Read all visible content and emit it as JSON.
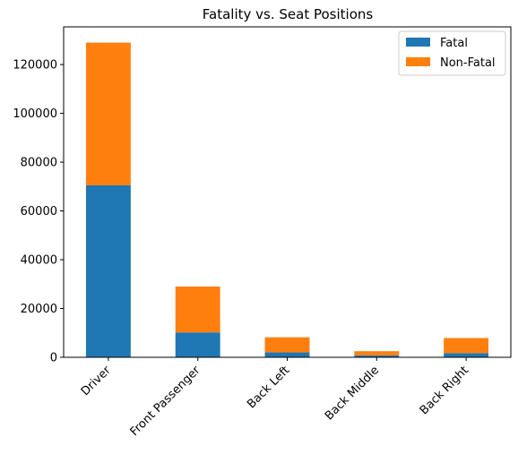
{
  "chart_data": {
    "type": "bar",
    "stacked": true,
    "title": "Fatality vs. Seat Positions",
    "xlabel": "",
    "ylabel": "",
    "categories": [
      "Driver",
      "Front Passenger",
      "Back Left",
      "Back Middle",
      "Back Right"
    ],
    "series": [
      {
        "name": "Fatal",
        "color": "#1f77b4",
        "values": [
          70500,
          10200,
          2000,
          800,
          1700
        ]
      },
      {
        "name": "Non-Fatal",
        "color": "#ff7f0e",
        "values": [
          58500,
          18800,
          6200,
          1700,
          6200
        ]
      }
    ],
    "ylim": [
      0,
      135450
    ],
    "yticks": [
      0,
      20000,
      40000,
      60000,
      80000,
      100000,
      120000
    ],
    "ytick_labels": [
      "0",
      "20000",
      "40000",
      "60000",
      "80000",
      "100000",
      "120000"
    ],
    "xtick_rotation": 45,
    "grid": false,
    "legend_position": "top-right"
  }
}
